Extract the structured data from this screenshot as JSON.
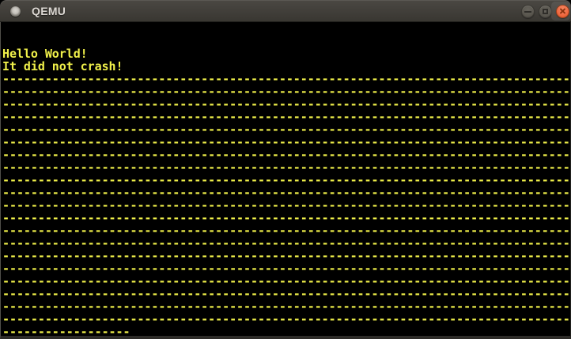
{
  "window": {
    "title": "QEMU",
    "controls": {
      "minimize": "minimize",
      "maximize": "maximize",
      "close": "close"
    }
  },
  "colors": {
    "terminal-fg": "#f0f04a",
    "terminal-bg": "#000000",
    "titlebar-top": "#4b4843",
    "titlebar-bottom": "#383631",
    "titlebar-text": "#dcd8d3",
    "button-face": "#5b5850",
    "button-glyph": "#2f2d29",
    "close-button": "#f06a43",
    "close-button-dark": "#d9531f",
    "close-glyph": "#8c3310",
    "window-border": "#2d2b28"
  },
  "terminal": {
    "columns": 80,
    "rows": 25,
    "lines": [
      "",
      "",
      "Hello World!",
      "It did not crash!",
      "--------------------------------------------------------------------------------",
      "--------------------------------------------------------------------------------",
      "--------------------------------------------------------------------------------",
      "--------------------------------------------------------------------------------",
      "--------------------------------------------------------------------------------",
      "--------------------------------------------------------------------------------",
      "--------------------------------------------------------------------------------",
      "--------------------------------------------------------------------------------",
      "--------------------------------------------------------------------------------",
      "--------------------------------------------------------------------------------",
      "--------------------------------------------------------------------------------",
      "--------------------------------------------------------------------------------",
      "--------------------------------------------------------------------------------",
      "--------------------------------------------------------------------------------",
      "--------------------------------------------------------------------------------",
      "--------------------------------------------------------------------------------",
      "--------------------------------------------------------------------------------",
      "--------------------------------------------------------------------------------",
      "--------------------------------------------------------------------------------",
      "--------------------------------------------------------------------------------",
      "------------------"
    ]
  }
}
